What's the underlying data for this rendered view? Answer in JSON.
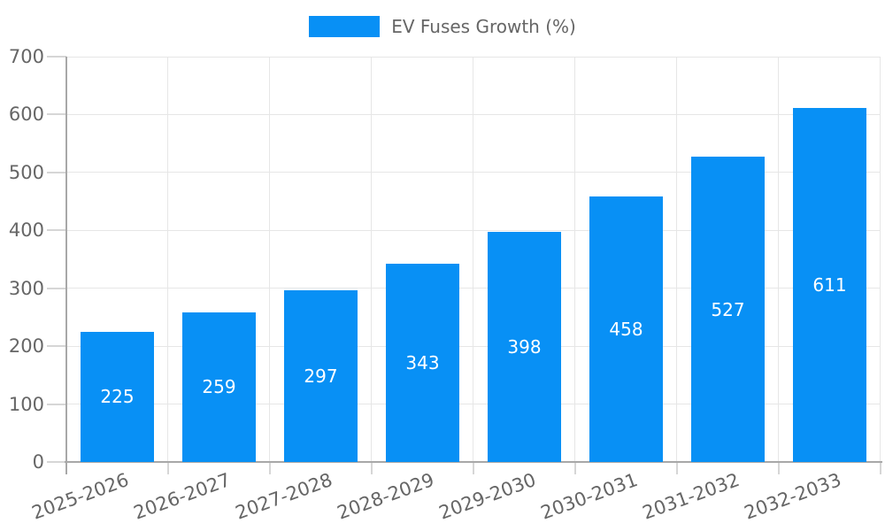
{
  "chart_data": {
    "type": "bar",
    "series_name": "EV Fuses Growth (%)",
    "categories": [
      "2025-2026",
      "2026-2027",
      "2027-2028",
      "2028-2029",
      "2029-2030",
      "2030-2031",
      "2031-2032",
      "2032-2033"
    ],
    "values": [
      225,
      259,
      297,
      343,
      398,
      458,
      527,
      611
    ],
    "value_labels_shown": true,
    "ylim": [
      0,
      700
    ],
    "yticks": [
      0,
      100,
      200,
      300,
      400,
      500,
      600,
      700
    ],
    "grid": true,
    "legend_position": "top-center",
    "x_label_rotation_deg": -20,
    "colors": {
      "bar": "#0890f5",
      "value_label": "#ffffff",
      "axis_label": "#666666",
      "legend_label": "#666666",
      "gridline": "#e6e6e6",
      "axis_line": "#a8a8a8",
      "tick": "#d6d6d6",
      "background": "#ffffff"
    }
  }
}
